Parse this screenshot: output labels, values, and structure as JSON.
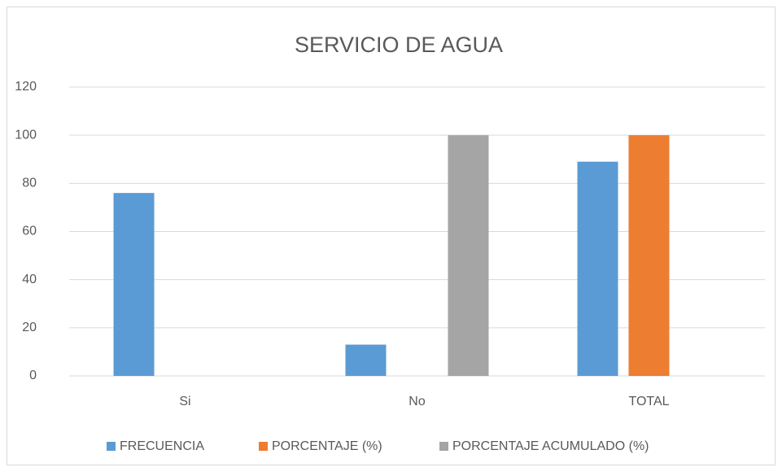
{
  "chart_data": {
    "type": "bar",
    "title": "SERVICIO DE AGUA",
    "categories": [
      "Si",
      "No",
      "TOTAL"
    ],
    "series": [
      {
        "name": "FRECUENCIA",
        "color": "#5b9bd5",
        "values": [
          76,
          13,
          89
        ]
      },
      {
        "name": "PORCENTAJE (%)",
        "color": "#ed7d31",
        "values": [
          null,
          null,
          100
        ]
      },
      {
        "name": "PORCENTAJE ACUMULADO (%)",
        "color": "#a5a5a5",
        "values": [
          null,
          100,
          null
        ]
      }
    ],
    "ylim": [
      0,
      120
    ],
    "yticks": [
      0,
      20,
      40,
      60,
      80,
      100,
      120
    ],
    "grid": true,
    "legend": "bottom"
  }
}
